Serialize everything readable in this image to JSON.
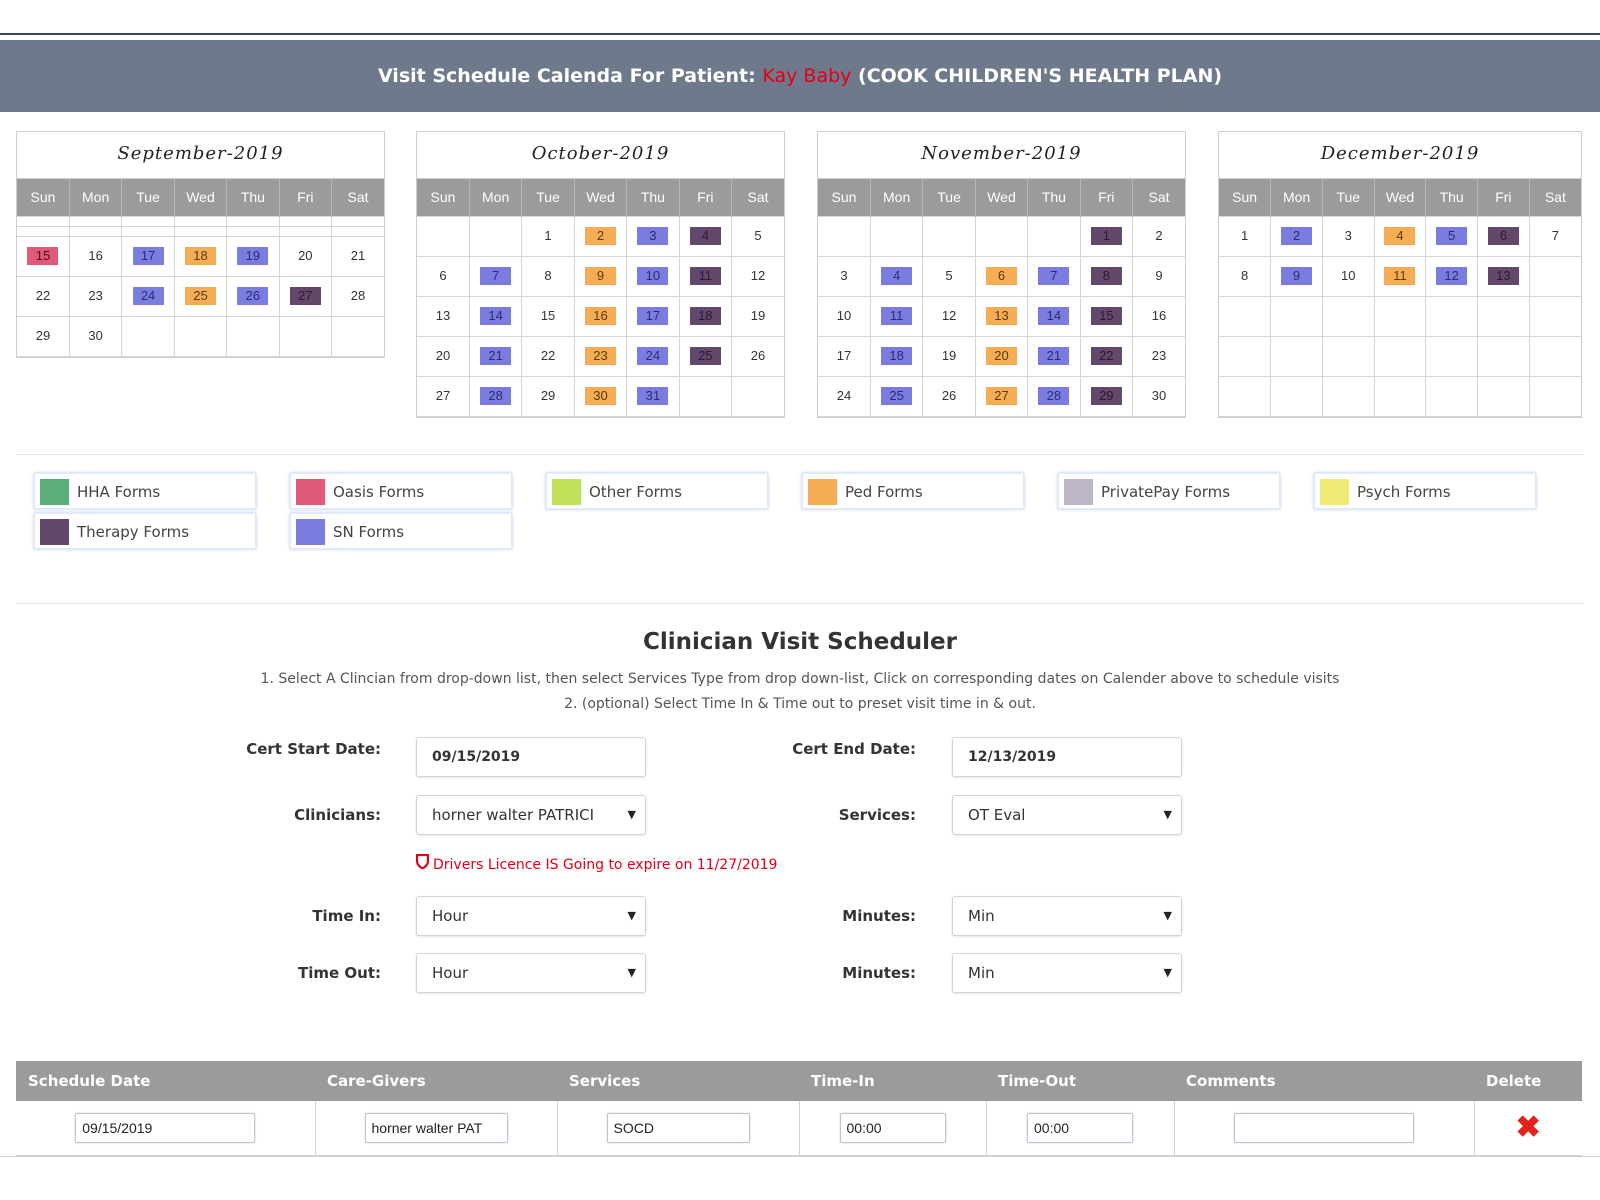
{
  "banner": {
    "prefix": "Visit Schedule Calenda For Patient: ",
    "patient": "Kay Baby",
    "plan": " (COOK CHILDREN'S HEALTH PLAN)"
  },
  "weekdays": [
    "Sun",
    "Mon",
    "Tue",
    "Wed",
    "Thu",
    "Fri",
    "Sat"
  ],
  "calendars": [
    {
      "title": "September-2019",
      "weeks": [
        [
          null,
          null,
          null,
          null,
          null,
          null,
          null
        ],
        [
          null,
          null,
          null,
          null,
          null,
          null,
          null
        ],
        [
          {
            "d": "15",
            "c": "oasis"
          },
          {
            "d": "16"
          },
          {
            "d": "17",
            "c": "sn"
          },
          {
            "d": "18",
            "c": "ped"
          },
          {
            "d": "19",
            "c": "sn"
          },
          {
            "d": "20"
          },
          {
            "d": "21"
          }
        ],
        [
          {
            "d": "22"
          },
          {
            "d": "23"
          },
          {
            "d": "24",
            "c": "sn"
          },
          {
            "d": "25",
            "c": "ped"
          },
          {
            "d": "26",
            "c": "sn"
          },
          {
            "d": "27",
            "c": "ther"
          },
          {
            "d": "28"
          }
        ],
        [
          {
            "d": "29"
          },
          {
            "d": "30"
          },
          null,
          null,
          null,
          null,
          null
        ]
      ]
    },
    {
      "title": "October-2019",
      "weeks": [
        [
          null,
          null,
          {
            "d": "1"
          },
          {
            "d": "2",
            "c": "ped"
          },
          {
            "d": "3",
            "c": "sn"
          },
          {
            "d": "4",
            "c": "ther"
          },
          {
            "d": "5"
          }
        ],
        [
          {
            "d": "6"
          },
          {
            "d": "7",
            "c": "sn"
          },
          {
            "d": "8"
          },
          {
            "d": "9",
            "c": "ped"
          },
          {
            "d": "10",
            "c": "sn"
          },
          {
            "d": "11",
            "c": "ther"
          },
          {
            "d": "12"
          }
        ],
        [
          {
            "d": "13"
          },
          {
            "d": "14",
            "c": "sn"
          },
          {
            "d": "15"
          },
          {
            "d": "16",
            "c": "ped"
          },
          {
            "d": "17",
            "c": "sn"
          },
          {
            "d": "18",
            "c": "ther"
          },
          {
            "d": "19"
          }
        ],
        [
          {
            "d": "20"
          },
          {
            "d": "21",
            "c": "sn"
          },
          {
            "d": "22"
          },
          {
            "d": "23",
            "c": "ped"
          },
          {
            "d": "24",
            "c": "sn"
          },
          {
            "d": "25",
            "c": "ther"
          },
          {
            "d": "26"
          }
        ],
        [
          {
            "d": "27"
          },
          {
            "d": "28",
            "c": "sn"
          },
          {
            "d": "29"
          },
          {
            "d": "30",
            "c": "ped"
          },
          {
            "d": "31",
            "c": "sn"
          },
          null,
          null
        ]
      ]
    },
    {
      "title": "November-2019",
      "weeks": [
        [
          null,
          null,
          null,
          null,
          null,
          {
            "d": "1",
            "c": "ther"
          },
          {
            "d": "2"
          }
        ],
        [
          {
            "d": "3"
          },
          {
            "d": "4",
            "c": "sn"
          },
          {
            "d": "5"
          },
          {
            "d": "6",
            "c": "ped"
          },
          {
            "d": "7",
            "c": "sn"
          },
          {
            "d": "8",
            "c": "ther"
          },
          {
            "d": "9"
          }
        ],
        [
          {
            "d": "10"
          },
          {
            "d": "11",
            "c": "sn"
          },
          {
            "d": "12"
          },
          {
            "d": "13",
            "c": "ped"
          },
          {
            "d": "14",
            "c": "sn"
          },
          {
            "d": "15",
            "c": "ther"
          },
          {
            "d": "16"
          }
        ],
        [
          {
            "d": "17"
          },
          {
            "d": "18",
            "c": "sn"
          },
          {
            "d": "19"
          },
          {
            "d": "20",
            "c": "ped"
          },
          {
            "d": "21",
            "c": "sn"
          },
          {
            "d": "22",
            "c": "ther"
          },
          {
            "d": "23"
          }
        ],
        [
          {
            "d": "24"
          },
          {
            "d": "25",
            "c": "sn"
          },
          {
            "d": "26"
          },
          {
            "d": "27",
            "c": "ped"
          },
          {
            "d": "28",
            "c": "sn"
          },
          {
            "d": "29",
            "c": "ther"
          },
          {
            "d": "30"
          }
        ]
      ]
    },
    {
      "title": "December-2019",
      "weeks": [
        [
          {
            "d": "1"
          },
          {
            "d": "2",
            "c": "sn"
          },
          {
            "d": "3"
          },
          {
            "d": "4",
            "c": "ped"
          },
          {
            "d": "5",
            "c": "sn"
          },
          {
            "d": "6",
            "c": "ther"
          },
          {
            "d": "7"
          }
        ],
        [
          {
            "d": "8"
          },
          {
            "d": "9",
            "c": "sn"
          },
          {
            "d": "10"
          },
          {
            "d": "11",
            "c": "ped"
          },
          {
            "d": "12",
            "c": "sn"
          },
          {
            "d": "13",
            "c": "ther"
          },
          null
        ],
        [
          null,
          null,
          null,
          null,
          null,
          null,
          null
        ],
        [
          null,
          null,
          null,
          null,
          null,
          null,
          null
        ],
        [
          null,
          null,
          null,
          null,
          null,
          null,
          null
        ]
      ]
    }
  ],
  "legend": [
    {
      "label": "HHA Forms",
      "color": "#5aae7c"
    },
    {
      "label": "Oasis Forms",
      "color": "#e05a78"
    },
    {
      "label": "Other Forms",
      "color": "#c2e05a"
    },
    {
      "label": "Ped Forms",
      "color": "#f5ad55"
    },
    {
      "label": "PrivatePay Forms",
      "color": "#bdb6c5"
    },
    {
      "label": "Psych Forms",
      "color": "#f0ea74"
    },
    {
      "label": "Therapy Forms",
      "color": "#62486a"
    },
    {
      "label": "SN Forms",
      "color": "#7b7ce0"
    }
  ],
  "scheduler": {
    "title": "Clinician Visit Scheduler",
    "instruction1": "1. Select A Clincian from drop-down list, then select Services Type from drop down-list, Click on corresponding dates on Calender above to schedule visits",
    "instruction2": "2. (optional) Select Time In & Time out to preset visit time in & out.",
    "cert_start_label": "Cert Start Date:",
    "cert_start_value": "09/15/2019",
    "cert_end_label": "Cert End Date:",
    "cert_end_value": "12/13/2019",
    "clinicians_label": "Clinicians:",
    "clinicians_value": "horner walter PATRICI",
    "services_label": "Services:",
    "services_value": "OT Eval",
    "warning": "Drivers Licence IS Going to expire on 11/27/2019",
    "time_in_label": "Time In:",
    "time_in_value": "Hour",
    "minutes_label": "Minutes:",
    "minutes_in_value": "Min",
    "time_out_label": "Time Out:",
    "time_out_value": "Hour",
    "minutes_out_value": "Min"
  },
  "table": {
    "headers": [
      "Schedule Date",
      "Care-Givers",
      "Services",
      "Time-In",
      "Time-Out",
      "Comments",
      "Delete"
    ],
    "row": {
      "date": "09/15/2019",
      "caregiver": "horner walter  PAT",
      "service": "SOCD",
      "time_in": "00:00",
      "time_out": "00:00",
      "comments": ""
    }
  },
  "colors": {
    "sn": "#7b7ce0",
    "ped": "#f5ad55",
    "therapy": "#62486a",
    "oasis": "#e05a78",
    "banner": "#6e7a8c",
    "warning": "#e1001a"
  }
}
